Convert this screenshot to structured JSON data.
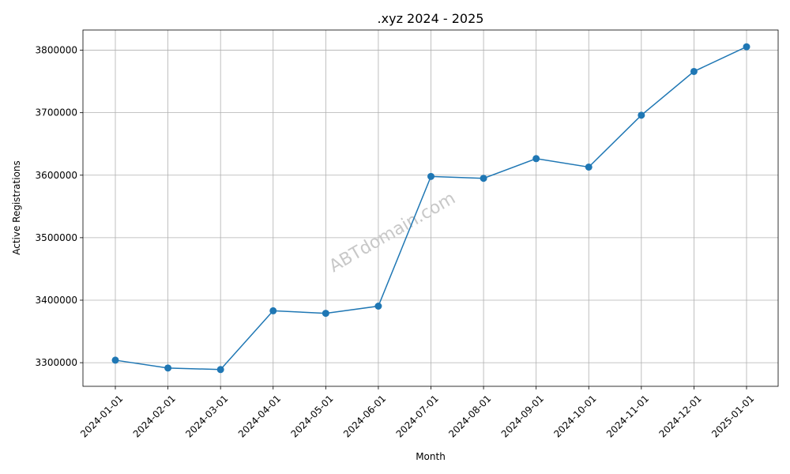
{
  "chart_data": {
    "type": "line",
    "title": ".xyz 2024 - 2025",
    "xlabel": "Month",
    "ylabel": "Active Registrations",
    "watermark": "ABTdomain.com",
    "x": [
      "2024-01-01",
      "2024-02-01",
      "2024-03-01",
      "2024-04-01",
      "2024-05-01",
      "2024-06-01",
      "2024-07-01",
      "2024-08-01",
      "2024-09-01",
      "2024-10-01",
      "2024-11-01",
      "2024-12-01",
      "2025-01-01"
    ],
    "series": [
      {
        "values": [
          3304000,
          3291500,
          3289000,
          3383000,
          3379000,
          3390500,
          3598000,
          3595000,
          3626500,
          3613000,
          3696000,
          3766000,
          3805500
        ],
        "color": "#1f77b4",
        "marker": "circle"
      }
    ],
    "yticks": [
      3300000,
      3400000,
      3500000,
      3600000,
      3700000,
      3800000
    ],
    "ylim": [
      3262200,
      3832300
    ],
    "grid": true
  }
}
